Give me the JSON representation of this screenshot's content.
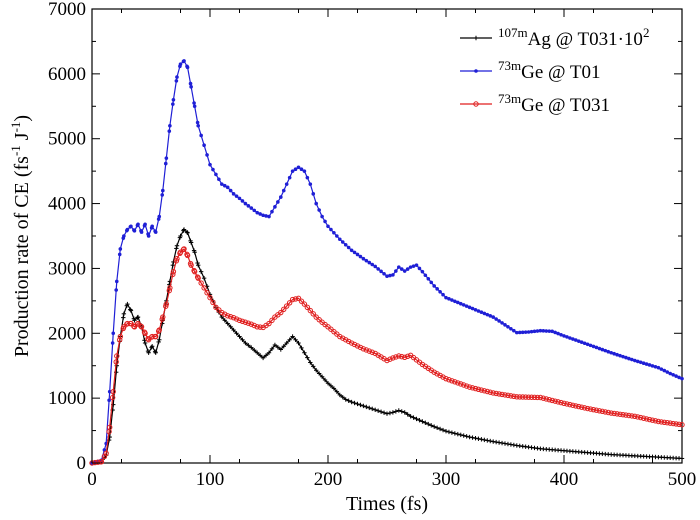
{
  "chart_data": {
    "type": "line",
    "xlabel": "Times (fs)",
    "ylabel_parts": {
      "base": "Production rate of CE (fs",
      "sup1": "-1",
      "mid": " J",
      "sup2": "-1",
      "end": ")"
    },
    "xlim": [
      0,
      500
    ],
    "ylim": [
      0,
      7000
    ],
    "x_ticks": [
      0,
      100,
      200,
      300,
      400,
      500
    ],
    "y_ticks": [
      0,
      1000,
      2000,
      3000,
      4000,
      5000,
      6000,
      7000
    ],
    "grid": false,
    "legend_position": "top-right",
    "series": [
      {
        "legend": {
          "sup": "107m",
          "text": "Ag @ T031·10",
          "sup2": "2"
        },
        "color": "#000000",
        "marker": "plus",
        "x": [
          0,
          8,
          12,
          15,
          18,
          21,
          24,
          27,
          30,
          33,
          36,
          39,
          42,
          45,
          48,
          51,
          54,
          57,
          60,
          63,
          66,
          69,
          72,
          75,
          78,
          81,
          84,
          87,
          90,
          95,
          100,
          105,
          110,
          115,
          120,
          125,
          130,
          135,
          140,
          145,
          150,
          155,
          160,
          165,
          170,
          175,
          180,
          185,
          190,
          195,
          200,
          205,
          210,
          215,
          220,
          230,
          240,
          250,
          255,
          260,
          265,
          270,
          280,
          290,
          300,
          320,
          340,
          360,
          380,
          400,
          420,
          440,
          460,
          480,
          500
        ],
        "y": [
          0,
          20,
          120,
          400,
          900,
          1500,
          1950,
          2300,
          2450,
          2350,
          2200,
          2250,
          2100,
          1850,
          1700,
          1800,
          1700,
          1900,
          2200,
          2500,
          2800,
          3100,
          3350,
          3500,
          3600,
          3550,
          3400,
          3250,
          3050,
          2850,
          2600,
          2400,
          2250,
          2150,
          2050,
          1950,
          1850,
          1780,
          1700,
          1620,
          1700,
          1820,
          1750,
          1850,
          1950,
          1850,
          1700,
          1550,
          1430,
          1330,
          1230,
          1150,
          1050,
          980,
          940,
          880,
          820,
          760,
          780,
          810,
          780,
          720,
          640,
          560,
          490,
          400,
          330,
          270,
          220,
          190,
          160,
          130,
          110,
          90,
          70
        ]
      },
      {
        "legend": {
          "sup": "73m",
          "text": "Ge @ T01",
          "sup2": ""
        },
        "color": "#1f1fd6",
        "marker": "dot",
        "x": [
          0,
          8,
          12,
          15,
          18,
          21,
          24,
          27,
          30,
          33,
          36,
          39,
          42,
          45,
          48,
          51,
          54,
          57,
          60,
          63,
          66,
          69,
          72,
          75,
          78,
          81,
          84,
          87,
          90,
          95,
          100,
          105,
          110,
          115,
          120,
          125,
          130,
          135,
          140,
          145,
          150,
          155,
          160,
          165,
          170,
          175,
          180,
          185,
          190,
          195,
          200,
          210,
          220,
          230,
          240,
          250,
          255,
          260,
          265,
          270,
          275,
          280,
          290,
          300,
          320,
          340,
          360,
          370,
          380,
          390,
          400,
          420,
          440,
          460,
          480,
          490,
          500
        ],
        "y": [
          0,
          40,
          300,
          1100,
          2000,
          2800,
          3300,
          3500,
          3600,
          3650,
          3580,
          3680,
          3560,
          3680,
          3500,
          3650,
          3560,
          3800,
          4200,
          4700,
          5200,
          5600,
          5950,
          6150,
          6200,
          6100,
          5800,
          5500,
          5200,
          4900,
          4600,
          4450,
          4300,
          4250,
          4150,
          4080,
          4000,
          3930,
          3860,
          3820,
          3800,
          3950,
          4100,
          4300,
          4500,
          4560,
          4500,
          4300,
          4000,
          3800,
          3650,
          3450,
          3280,
          3150,
          3030,
          2880,
          2900,
          3020,
          2960,
          3020,
          3050,
          2950,
          2730,
          2550,
          2400,
          2250,
          2010,
          2020,
          2040,
          2030,
          1960,
          1830,
          1700,
          1580,
          1470,
          1380,
          1300
        ]
      },
      {
        "legend": {
          "sup": "73m",
          "text": "Ge @ T031",
          "sup2": ""
        },
        "color": "#e01f1f",
        "marker": "circle",
        "x": [
          0,
          8,
          12,
          15,
          18,
          21,
          24,
          27,
          30,
          33,
          36,
          39,
          42,
          45,
          48,
          51,
          54,
          57,
          60,
          63,
          66,
          69,
          72,
          75,
          78,
          81,
          84,
          87,
          90,
          95,
          100,
          105,
          110,
          115,
          120,
          125,
          130,
          135,
          140,
          145,
          150,
          155,
          160,
          165,
          170,
          175,
          180,
          185,
          190,
          195,
          200,
          210,
          220,
          230,
          240,
          250,
          255,
          260,
          265,
          270,
          280,
          290,
          300,
          320,
          340,
          360,
          380,
          400,
          420,
          440,
          460,
          480,
          500
        ],
        "y": [
          0,
          20,
          150,
          550,
          1100,
          1650,
          1950,
          2100,
          2150,
          2150,
          2100,
          2150,
          2100,
          2000,
          1900,
          1950,
          1950,
          2050,
          2250,
          2450,
          2700,
          2950,
          3150,
          3250,
          3300,
          3200,
          3050,
          2950,
          2850,
          2700,
          2550,
          2400,
          2320,
          2270,
          2240,
          2200,
          2170,
          2140,
          2100,
          2090,
          2150,
          2250,
          2320,
          2420,
          2520,
          2540,
          2450,
          2350,
          2250,
          2170,
          2100,
          1950,
          1850,
          1760,
          1690,
          1580,
          1620,
          1650,
          1630,
          1660,
          1520,
          1400,
          1300,
          1170,
          1080,
          1020,
          1010,
          920,
          840,
          770,
          720,
          640,
          590
        ]
      }
    ]
  }
}
